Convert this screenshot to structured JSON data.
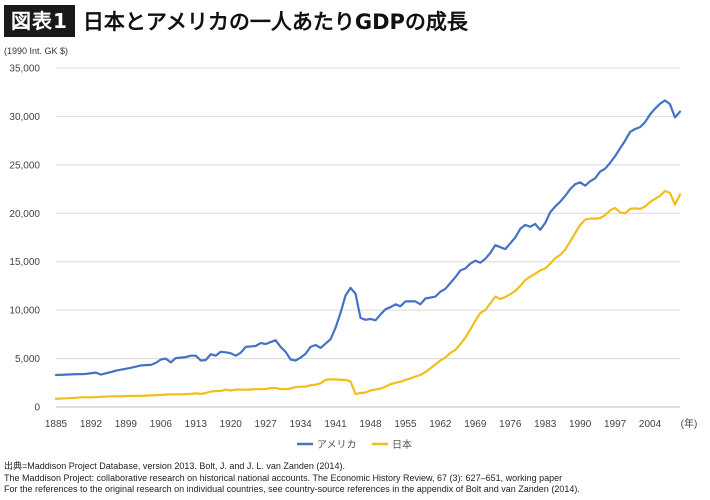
{
  "title": {
    "badge": "図表1",
    "text": "日本とアメリカの一人あたりGDPの成長"
  },
  "unit_label": "(1990 Int. GK $)",
  "source": {
    "line1": "出典=Maddison Project Database, version 2013. Bolt, J. and J. L. van Zanden (2014).",
    "line2": "The Maddison Project: collaborative research on historical national accounts. The Economic History Review, 67 (3): 627–651, working paper",
    "line3": "For the references to the original research on individual countries, see country-source references in the appendix of Bolt and van Zanden (2014)."
  },
  "chart_data": {
    "type": "line",
    "title": "日本とアメリカの一人あたりGDPの成長",
    "ylabel": "(1990 Int. GK $)",
    "xlabel": "(年)",
    "xlim": [
      1885,
      2010
    ],
    "ylim": [
      0,
      35000
    ],
    "x_ticks": [
      "1885",
      "1892",
      "1899",
      "1906",
      "1913",
      "1920",
      "1927",
      "1934",
      "1941",
      "1948",
      "1955",
      "1962",
      "1969",
      "1976",
      "1983",
      "1990",
      "1997",
      "2004"
    ],
    "x_unit_label": "(年)",
    "y_ticks": [
      "0",
      "5,000",
      "10,000",
      "15,000",
      "20,000",
      "25,000",
      "30,000",
      "35,000"
    ],
    "grid": true,
    "legend_position": "bottom",
    "series": [
      {
        "name": "アメリカ",
        "color": "#4472c4",
        "points": [
          [
            1885,
            3300
          ],
          [
            1887,
            3350
          ],
          [
            1889,
            3400
          ],
          [
            1890,
            3390
          ],
          [
            1891,
            3420
          ],
          [
            1893,
            3550
          ],
          [
            1894,
            3350
          ],
          [
            1896,
            3600
          ],
          [
            1897,
            3750
          ],
          [
            1898,
            3850
          ],
          [
            1900,
            4050
          ],
          [
            1902,
            4300
          ],
          [
            1904,
            4350
          ],
          [
            1905,
            4550
          ],
          [
            1906,
            4900
          ],
          [
            1907,
            5000
          ],
          [
            1908,
            4600
          ],
          [
            1909,
            5050
          ],
          [
            1911,
            5150
          ],
          [
            1912,
            5300
          ],
          [
            1913,
            5300
          ],
          [
            1914,
            4800
          ],
          [
            1915,
            4850
          ],
          [
            1916,
            5450
          ],
          [
            1917,
            5300
          ],
          [
            1918,
            5700
          ],
          [
            1919,
            5650
          ],
          [
            1920,
            5550
          ],
          [
            1921,
            5300
          ],
          [
            1922,
            5600
          ],
          [
            1923,
            6200
          ],
          [
            1925,
            6300
          ],
          [
            1926,
            6600
          ],
          [
            1927,
            6500
          ],
          [
            1929,
            6900
          ],
          [
            1930,
            6200
          ],
          [
            1931,
            5700
          ],
          [
            1932,
            4900
          ],
          [
            1933,
            4800
          ],
          [
            1934,
            5100
          ],
          [
            1935,
            5500
          ],
          [
            1936,
            6200
          ],
          [
            1937,
            6400
          ],
          [
            1938,
            6100
          ],
          [
            1939,
            6550
          ],
          [
            1940,
            7000
          ],
          [
            1941,
            8200
          ],
          [
            1942,
            9700
          ],
          [
            1943,
            11500
          ],
          [
            1944,
            12300
          ],
          [
            1945,
            11700
          ],
          [
            1946,
            9200
          ],
          [
            1947,
            9000
          ],
          [
            1948,
            9100
          ],
          [
            1949,
            8950
          ],
          [
            1950,
            9550
          ],
          [
            1951,
            10100
          ],
          [
            1952,
            10300
          ],
          [
            1953,
            10600
          ],
          [
            1954,
            10400
          ],
          [
            1955,
            10900
          ],
          [
            1956,
            10900
          ],
          [
            1957,
            10900
          ],
          [
            1958,
            10600
          ],
          [
            1959,
            11200
          ],
          [
            1960,
            11300
          ],
          [
            1961,
            11400
          ],
          [
            1962,
            11900
          ],
          [
            1963,
            12200
          ],
          [
            1964,
            12800
          ],
          [
            1965,
            13400
          ],
          [
            1966,
            14100
          ],
          [
            1967,
            14300
          ],
          [
            1968,
            14800
          ],
          [
            1969,
            15100
          ],
          [
            1970,
            14900
          ],
          [
            1971,
            15300
          ],
          [
            1972,
            15900
          ],
          [
            1973,
            16700
          ],
          [
            1974,
            16500
          ],
          [
            1975,
            16300
          ],
          [
            1976,
            16900
          ],
          [
            1977,
            17500
          ],
          [
            1978,
            18400
          ],
          [
            1979,
            18800
          ],
          [
            1980,
            18600
          ],
          [
            1981,
            18900
          ],
          [
            1982,
            18300
          ],
          [
            1983,
            19000
          ],
          [
            1984,
            20100
          ],
          [
            1985,
            20700
          ],
          [
            1986,
            21200
          ],
          [
            1987,
            21800
          ],
          [
            1988,
            22500
          ],
          [
            1989,
            23000
          ],
          [
            1990,
            23200
          ],
          [
            1991,
            22850
          ],
          [
            1992,
            23300
          ],
          [
            1993,
            23600
          ],
          [
            1994,
            24300
          ],
          [
            1995,
            24600
          ],
          [
            1996,
            25200
          ],
          [
            1997,
            25900
          ],
          [
            1998,
            26700
          ],
          [
            1999,
            27500
          ],
          [
            2000,
            28400
          ],
          [
            2001,
            28700
          ],
          [
            2002,
            28900
          ],
          [
            2003,
            29400
          ],
          [
            2004,
            30200
          ],
          [
            2005,
            30800
          ],
          [
            2006,
            31300
          ],
          [
            2007,
            31650
          ],
          [
            2008,
            31250
          ],
          [
            2009,
            29900
          ],
          [
            2010,
            30500
          ]
        ]
      },
      {
        "name": "日本",
        "color": "#f2be1b",
        "points": [
          [
            1885,
            850
          ],
          [
            1887,
            900
          ],
          [
            1889,
            950
          ],
          [
            1890,
            1000
          ],
          [
            1892,
            1000
          ],
          [
            1894,
            1050
          ],
          [
            1896,
            1100
          ],
          [
            1898,
            1100
          ],
          [
            1900,
            1150
          ],
          [
            1902,
            1150
          ],
          [
            1904,
            1200
          ],
          [
            1906,
            1250
          ],
          [
            1908,
            1300
          ],
          [
            1910,
            1300
          ],
          [
            1912,
            1350
          ],
          [
            1913,
            1400
          ],
          [
            1914,
            1350
          ],
          [
            1915,
            1450
          ],
          [
            1916,
            1600
          ],
          [
            1917,
            1650
          ],
          [
            1918,
            1650
          ],
          [
            1919,
            1800
          ],
          [
            1920,
            1700
          ],
          [
            1921,
            1800
          ],
          [
            1922,
            1800
          ],
          [
            1923,
            1800
          ],
          [
            1924,
            1800
          ],
          [
            1925,
            1850
          ],
          [
            1926,
            1850
          ],
          [
            1927,
            1850
          ],
          [
            1928,
            1950
          ],
          [
            1929,
            1950
          ],
          [
            1930,
            1850
          ],
          [
            1931,
            1850
          ],
          [
            1932,
            1900
          ],
          [
            1933,
            2050
          ],
          [
            1934,
            2100
          ],
          [
            1935,
            2100
          ],
          [
            1936,
            2250
          ],
          [
            1937,
            2300
          ],
          [
            1938,
            2450
          ],
          [
            1939,
            2800
          ],
          [
            1940,
            2850
          ],
          [
            1941,
            2850
          ],
          [
            1942,
            2800
          ],
          [
            1943,
            2800
          ],
          [
            1944,
            2650
          ],
          [
            1945,
            1350
          ],
          [
            1946,
            1450
          ],
          [
            1947,
            1500
          ],
          [
            1948,
            1700
          ],
          [
            1949,
            1800
          ],
          [
            1950,
            1900
          ],
          [
            1951,
            2100
          ],
          [
            1952,
            2350
          ],
          [
            1953,
            2500
          ],
          [
            1954,
            2600
          ],
          [
            1955,
            2800
          ],
          [
            1956,
            2950
          ],
          [
            1957,
            3150
          ],
          [
            1958,
            3300
          ],
          [
            1959,
            3600
          ],
          [
            1960,
            4000
          ],
          [
            1961,
            4400
          ],
          [
            1962,
            4800
          ],
          [
            1963,
            5100
          ],
          [
            1964,
            5600
          ],
          [
            1965,
            5900
          ],
          [
            1966,
            6500
          ],
          [
            1967,
            7150
          ],
          [
            1968,
            8000
          ],
          [
            1969,
            8900
          ],
          [
            1970,
            9700
          ],
          [
            1971,
            10000
          ],
          [
            1972,
            10700
          ],
          [
            1973,
            11400
          ],
          [
            1974,
            11150
          ],
          [
            1975,
            11350
          ],
          [
            1976,
            11650
          ],
          [
            1977,
            12000
          ],
          [
            1978,
            12500
          ],
          [
            1979,
            13100
          ],
          [
            1980,
            13450
          ],
          [
            1981,
            13750
          ],
          [
            1982,
            14100
          ],
          [
            1983,
            14300
          ],
          [
            1984,
            14800
          ],
          [
            1985,
            15350
          ],
          [
            1986,
            15700
          ],
          [
            1987,
            16250
          ],
          [
            1988,
            17100
          ],
          [
            1989,
            17950
          ],
          [
            1990,
            18800
          ],
          [
            1991,
            19350
          ],
          [
            1992,
            19450
          ],
          [
            1993,
            19450
          ],
          [
            1994,
            19500
          ],
          [
            1995,
            19800
          ],
          [
            1996,
            20300
          ],
          [
            1997,
            20550
          ],
          [
            1998,
            20100
          ],
          [
            1999,
            20000
          ],
          [
            2000,
            20450
          ],
          [
            2001,
            20500
          ],
          [
            2002,
            20450
          ],
          [
            2003,
            20700
          ],
          [
            2004,
            21150
          ],
          [
            2005,
            21500
          ],
          [
            2006,
            21800
          ],
          [
            2007,
            22300
          ],
          [
            2008,
            22100
          ],
          [
            2009,
            20900
          ],
          [
            2010,
            21950
          ]
        ]
      }
    ]
  }
}
